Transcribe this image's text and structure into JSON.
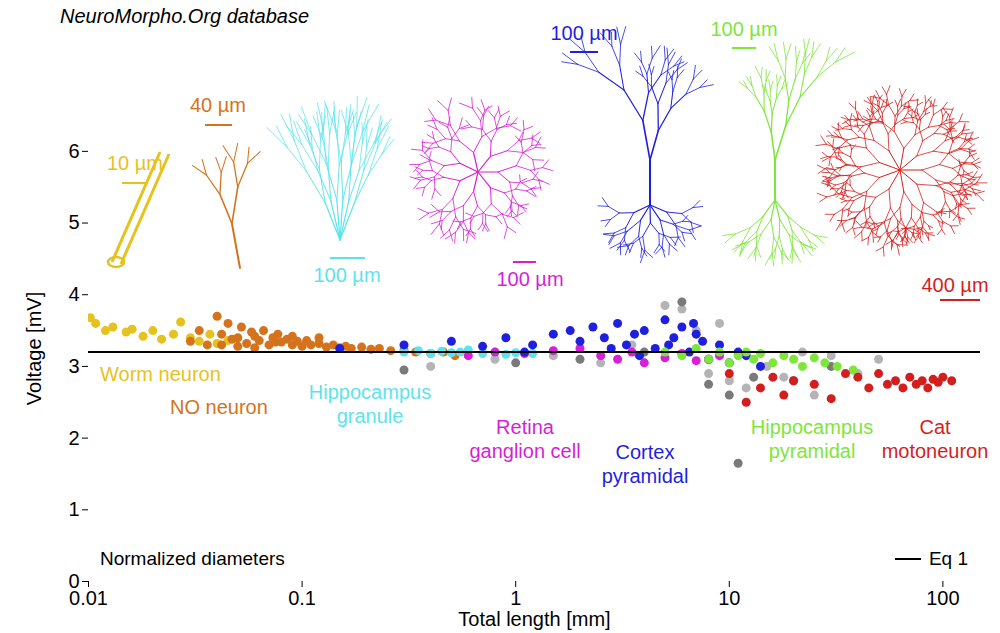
{
  "chart_data": {
    "type": "scatter",
    "title": "NeuroMorpho.Org database",
    "xlabel": "Total length [mm]",
    "ylabel": "Voltage [mV]",
    "annotations": [
      "Normalized diameters"
    ],
    "log": "x",
    "xlim": [
      0.01,
      150
    ],
    "ylim": [
      0,
      6.5
    ],
    "xticks": [
      0.01,
      0.1,
      1,
      10,
      100
    ],
    "yticks": [
      0,
      1,
      2,
      3,
      4,
      5,
      6
    ],
    "legend": "lower right",
    "series": [
      {
        "name": null,
        "color": "#b4b4b4",
        "marker": "circle",
        "x": [
          0.4,
          0.8,
          1.5,
          2.5,
          3.5,
          5,
          6,
          7,
          8,
          9,
          10,
          12,
          15,
          18,
          22,
          25,
          30,
          40,
          50
        ],
        "values": [
          3.0,
          3.1,
          3.15,
          3.05,
          3.3,
          3.85,
          3.8,
          3.5,
          2.9,
          3.6,
          2.8,
          2.7,
          3.0,
          2.85,
          3.2,
          2.6,
          3.15,
          2.9,
          3.1
        ]
      },
      {
        "name": null,
        "color": "#7a7a7a",
        "marker": "circle",
        "x": [
          0.3,
          1,
          2,
          4,
          6,
          8,
          10,
          11,
          13,
          20,
          30
        ],
        "values": [
          2.95,
          3.05,
          3.1,
          3.2,
          3.9,
          2.75,
          2.6,
          1.65,
          2.85,
          2.8,
          3.0
        ]
      },
      {
        "name": "Worm neuron",
        "color": "#e6c21e",
        "marker": "circle",
        "scale_bar": "10 µm",
        "x": [
          0.0102,
          0.0108,
          0.012,
          0.013,
          0.015,
          0.016,
          0.018,
          0.02,
          0.022,
          0.025,
          0.027,
          0.03,
          0.033,
          0.037,
          0.04,
          0.045
        ],
        "values": [
          3.68,
          3.6,
          3.5,
          3.55,
          3.48,
          3.52,
          3.42,
          3.5,
          3.38,
          3.45,
          3.62,
          3.4,
          3.35,
          3.45,
          3.32,
          3.36
        ]
      },
      {
        "name": "NO neuron",
        "color": "#d5731c",
        "marker": "circle",
        "scale_bar": "40 µm",
        "x": [
          0.03,
          0.033,
          0.036,
          0.04,
          0.042,
          0.045,
          0.047,
          0.05,
          0.052,
          0.055,
          0.058,
          0.06,
          0.063,
          0.066,
          0.07,
          0.073,
          0.077,
          0.08,
          0.085,
          0.09,
          0.095,
          0.1,
          0.105,
          0.11,
          0.12,
          0.13,
          0.14,
          0.15,
          0.16,
          0.17,
          0.19,
          0.21,
          0.23,
          0.26,
          0.3,
          0.34,
          0.4,
          0.46,
          0.52,
          0.042,
          0.05,
          0.06,
          0.075,
          0.09,
          0.12
        ],
        "values": [
          3.35,
          3.5,
          3.3,
          3.7,
          3.45,
          3.6,
          3.38,
          3.4,
          3.55,
          3.32,
          3.48,
          3.42,
          3.36,
          3.5,
          3.3,
          3.4,
          3.45,
          3.34,
          3.38,
          3.3,
          3.35,
          3.28,
          3.36,
          3.3,
          3.32,
          3.27,
          3.3,
          3.26,
          3.28,
          3.25,
          3.27,
          3.24,
          3.25,
          3.22,
          3.23,
          3.2,
          3.18,
          3.2,
          3.15,
          3.3,
          3.28,
          3.26,
          3.34,
          3.42,
          3.4
        ]
      },
      {
        "name": "Hippocampus granule",
        "color": "#5ee3ec",
        "marker": "circle",
        "scale_bar": "100 µm",
        "x": [
          0.3,
          0.35,
          0.4,
          0.45,
          0.5,
          0.55,
          0.6,
          0.7,
          0.8,
          0.9,
          1.0,
          1.2
        ],
        "values": [
          3.2,
          3.22,
          3.18,
          3.21,
          3.19,
          3.2,
          3.23,
          3.18,
          3.2,
          3.17,
          3.19,
          3.18
        ]
      },
      {
        "name": "Retina ganglion cell",
        "color": "#d61fd6",
        "marker": "circle",
        "scale_bar": "100 µm",
        "x": [
          0.6,
          0.8,
          1.1,
          1.5,
          2,
          2.5,
          3,
          3.5,
          4,
          5,
          6,
          7,
          8,
          9
        ],
        "values": [
          3.15,
          3.2,
          3.18,
          3.22,
          3.25,
          3.15,
          3.1,
          3.2,
          3.05,
          3.12,
          3.18,
          3.08,
          3.1,
          3.15
        ]
      },
      {
        "name": "Cortex pyramidal",
        "color": "#1f1fe0",
        "marker": "circle",
        "scale_bar": "100 µm",
        "x": [
          0.15,
          0.3,
          0.5,
          0.7,
          0.9,
          1.2,
          1.5,
          1.8,
          2,
          2.3,
          2.6,
          3,
          3.3,
          3.6,
          4,
          4.5,
          5,
          5.5,
          6,
          6.5,
          7,
          7.5,
          8,
          9,
          10,
          11,
          12,
          14,
          1.1,
          2.8,
          3.8,
          5.2,
          6.8
        ],
        "values": [
          3.25,
          3.3,
          3.35,
          3.28,
          3.4,
          3.3,
          3.45,
          3.5,
          3.35,
          3.55,
          3.4,
          3.6,
          3.3,
          3.45,
          3.5,
          3.25,
          3.65,
          3.4,
          3.55,
          3.2,
          3.45,
          3.35,
          3.1,
          3.3,
          3.05,
          3.2,
          3.15,
          3.0,
          3.2,
          3.25,
          3.15,
          3.3,
          3.6
        ]
      },
      {
        "name": "Hippocampus pyramidal",
        "color": "#7ee63a",
        "marker": "circle",
        "scale_bar": "100 µm",
        "x": [
          5,
          6,
          7,
          8,
          9,
          10,
          11,
          12,
          13,
          14,
          16,
          18,
          20,
          22,
          25,
          28,
          32,
          38
        ],
        "values": [
          3.2,
          3.15,
          3.25,
          3.1,
          3.2,
          3.05,
          3.15,
          3.2,
          3.1,
          3.18,
          3.05,
          3.15,
          3.1,
          3.0,
          3.12,
          3.05,
          3.0,
          2.95
        ]
      },
      {
        "name": "Cat motoneuron",
        "color": "#d41e1e",
        "marker": "circle",
        "scale_bar": "400 µm",
        "x": [
          10,
          12,
          14,
          16,
          18,
          20,
          25,
          30,
          35,
          40,
          45,
          50,
          55,
          60,
          65,
          70,
          75,
          80,
          85,
          90,
          95,
          100,
          110
        ],
        "values": [
          2.9,
          2.5,
          2.7,
          2.85,
          2.6,
          2.8,
          2.75,
          2.55,
          2.9,
          2.85,
          2.7,
          2.9,
          2.75,
          2.8,
          2.7,
          2.85,
          2.75,
          2.8,
          2.7,
          2.82,
          2.78,
          2.85,
          2.8
        ]
      },
      {
        "name": "Eq 1",
        "type": "line",
        "color": "#000000",
        "line_style": "solid",
        "x": [
          0.01,
          150
        ],
        "values": [
          3.2,
          3.2
        ]
      }
    ]
  }
}
